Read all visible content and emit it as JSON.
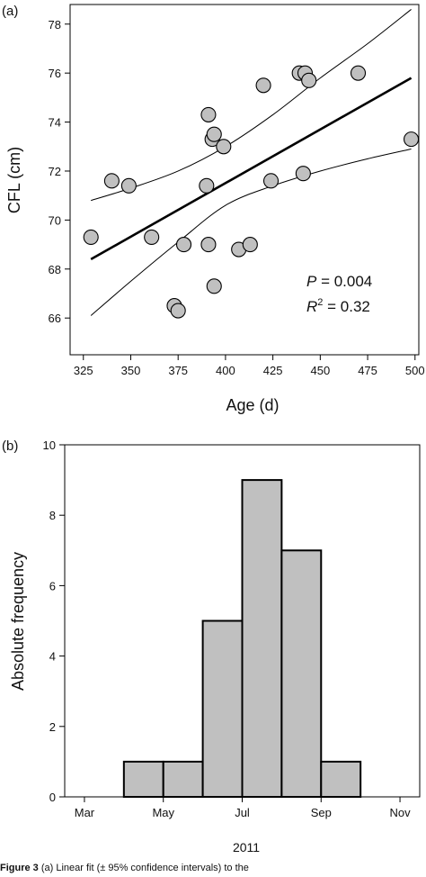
{
  "caption": {
    "label": "Figure 3",
    "text": "(a) Linear fit (± 95% confidence intervals) to the"
  },
  "chart_data": [
    {
      "panel_label": "(a)",
      "type": "scatter",
      "title": "",
      "xlabel": "Age (d)",
      "ylabel": "CFL (cm)",
      "xlim": [
        318,
        502
      ],
      "ylim": [
        64.5,
        78.8
      ],
      "xticks": [
        325,
        350,
        375,
        400,
        425,
        450,
        475,
        500
      ],
      "yticks": [
        66,
        68,
        70,
        72,
        74,
        76,
        78
      ],
      "grid": false,
      "points": [
        {
          "x": 329,
          "y": 69.3
        },
        {
          "x": 340,
          "y": 71.6
        },
        {
          "x": 349,
          "y": 71.4
        },
        {
          "x": 361,
          "y": 69.3
        },
        {
          "x": 373,
          "y": 66.5
        },
        {
          "x": 375,
          "y": 66.3
        },
        {
          "x": 378,
          "y": 69.0
        },
        {
          "x": 390,
          "y": 71.4
        },
        {
          "x": 391,
          "y": 74.3
        },
        {
          "x": 391,
          "y": 69.0
        },
        {
          "x": 393,
          "y": 73.3
        },
        {
          "x": 394,
          "y": 73.5
        },
        {
          "x": 394,
          "y": 67.3
        },
        {
          "x": 399,
          "y": 73.0
        },
        {
          "x": 407,
          "y": 68.8
        },
        {
          "x": 413,
          "y": 69.0
        },
        {
          "x": 420,
          "y": 75.5
        },
        {
          "x": 424,
          "y": 71.6
        },
        {
          "x": 439,
          "y": 76.0
        },
        {
          "x": 441,
          "y": 71.9
        },
        {
          "x": 442,
          "y": 76.0
        },
        {
          "x": 444,
          "y": 75.7
        },
        {
          "x": 470,
          "y": 76.0
        },
        {
          "x": 498,
          "y": 73.3
        }
      ],
      "fit": {
        "x": [
          329,
          498
        ],
        "y": [
          68.4,
          75.8
        ]
      },
      "ci_upper": {
        "x": [
          329,
          350,
          375,
          400,
          425,
          450,
          475,
          498
        ],
        "y": [
          70.8,
          71.3,
          72.0,
          73.0,
          74.3,
          75.8,
          77.2,
          78.6
        ]
      },
      "ci_lower": {
        "x": [
          329,
          350,
          375,
          400,
          425,
          450,
          475,
          498
        ],
        "y": [
          66.1,
          67.5,
          69.1,
          70.6,
          71.4,
          72.0,
          72.5,
          72.9
        ]
      },
      "annotations": [
        {
          "italic": "P",
          "text": " = 0.004"
        },
        {
          "italic": "R",
          "sup": "2",
          "text": " = 0.32"
        }
      ]
    },
    {
      "panel_label": "(b)",
      "type": "bar",
      "title": "",
      "xlabel": "2011",
      "ylabel": "Absolute frequency",
      "ylim": [
        0,
        10
      ],
      "yticks": [
        0,
        2,
        4,
        6,
        8,
        10
      ],
      "xlim": [
        2.5,
        11.5
      ],
      "xticks": [
        {
          "label": "Mar",
          "x": 3
        },
        {
          "label": "May",
          "x": 5
        },
        {
          "label": "Jul",
          "x": 7
        },
        {
          "label": "Sep",
          "x": 9
        },
        {
          "label": "Nov",
          "x": 11
        }
      ],
      "bins": [
        {
          "start": 4,
          "end": 5,
          "value": 1
        },
        {
          "start": 5,
          "end": 6,
          "value": 1
        },
        {
          "start": 6,
          "end": 7,
          "value": 5
        },
        {
          "start": 7,
          "end": 8,
          "value": 9
        },
        {
          "start": 8,
          "end": 9,
          "value": 7
        },
        {
          "start": 9,
          "end": 10,
          "value": 1
        }
      ],
      "bar_color": "#c0c0c0",
      "grid": false
    }
  ],
  "style": {
    "marker_fill": "#c0c0c0",
    "stroke": "#000000"
  }
}
